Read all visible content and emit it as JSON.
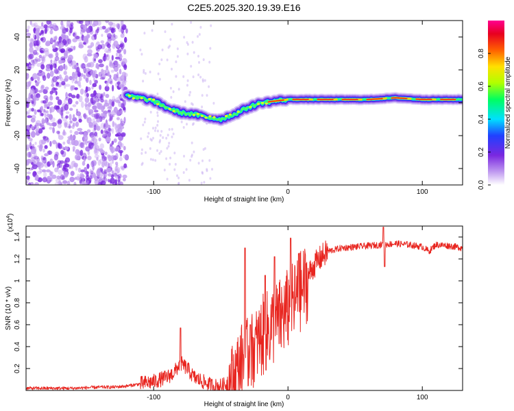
{
  "title": "C2E5.2025.320.19.39.E16",
  "chart_data": [
    {
      "type": "heatmap",
      "xlabel": "Height of straight line (km)",
      "ylabel": "Frequency (Hz)",
      "xlim": [
        -195,
        130
      ],
      "ylim": [
        -50,
        50
      ],
      "xticks": [
        -100,
        0,
        100
      ],
      "yticks": [
        -40,
        -20,
        0,
        20,
        40
      ],
      "colorbar": {
        "label": "Normalized spectral amplitude",
        "range": [
          0,
          1
        ],
        "ticks": [
          "0.0",
          "0.2",
          "0.4",
          "0.6",
          "0.8"
        ],
        "tick_values": [
          0,
          0.2,
          0.4,
          0.6,
          0.8
        ],
        "colors": [
          "#ffffff",
          "#c09af0",
          "#7a28e0",
          "#2040ff",
          "#00e0ff",
          "#00ff60",
          "#b0ff00",
          "#ffe000",
          "#ff6000",
          "#e80020",
          "#ff0090"
        ]
      },
      "ridge": {
        "name": "dominant frequency",
        "x": [
          -120,
          -110,
          -100,
          -90,
          -80,
          -70,
          -60,
          -50,
          -40,
          -30,
          -20,
          -10,
          0,
          20,
          40,
          60,
          80,
          100,
          130
        ],
        "y": [
          4,
          3,
          1,
          -3,
          -6,
          -7,
          -9,
          -10,
          -7,
          -3,
          0,
          1,
          2,
          2,
          2,
          2,
          3,
          2,
          2
        ]
      },
      "noise_region_x": [
        -195,
        -120
      ]
    },
    {
      "type": "line",
      "xlabel": "Height of straight line (km)",
      "ylabel": "SNR (10 * v/v)",
      "scale_note": "(x10",
      "scale_exp": "4",
      "xlim": [
        -195,
        130
      ],
      "ylim": [
        0,
        1.5
      ],
      "xticks": [
        -100,
        0,
        100
      ],
      "yticks": [
        0.2,
        0.4,
        0.6,
        0.8,
        1.0,
        1.2,
        1.4
      ],
      "ytick_labels": [
        "0.2",
        "0.4",
        "0.6",
        "0.8",
        "1",
        "1.2",
        "1.4"
      ],
      "color": "#e8251f",
      "series": [
        {
          "name": "SNR",
          "x": [
            -195,
            -180,
            -160,
            -140,
            -130,
            -120,
            -110,
            -100,
            -90,
            -85,
            -80,
            -75,
            -70,
            -65,
            -60,
            -55,
            -50,
            -45,
            -40,
            -35,
            -30,
            -25,
            -20,
            -15,
            -10,
            -5,
            0,
            5,
            10,
            15,
            20,
            25,
            30,
            40,
            50,
            60,
            70,
            80,
            90,
            100,
            105,
            110,
            120,
            130
          ],
          "y": [
            0.02,
            0.02,
            0.02,
            0.03,
            0.03,
            0.04,
            0.06,
            0.08,
            0.12,
            0.16,
            0.25,
            0.2,
            0.12,
            0.09,
            0.06,
            0.04,
            0.04,
            0.06,
            0.15,
            0.3,
            0.35,
            0.42,
            0.52,
            0.58,
            0.65,
            0.7,
            0.78,
            0.85,
            0.95,
            1.05,
            1.15,
            1.22,
            1.27,
            1.3,
            1.31,
            1.32,
            1.33,
            1.34,
            1.33,
            1.31,
            1.27,
            1.33,
            1.32,
            1.3
          ],
          "peaks": [
            {
              "x": -80,
              "y": 0.57
            },
            {
              "x": -32,
              "y": 1.3
            },
            {
              "x": -28,
              "y": 0.6
            },
            {
              "x": -17,
              "y": 1.05
            },
            {
              "x": -10,
              "y": 1.22
            },
            {
              "x": 2,
              "y": 1.39
            },
            {
              "x": 8,
              "y": 1.25
            },
            {
              "x": 71,
              "y": 1.49
            },
            {
              "x": 72,
              "y": 1.13
            }
          ]
        }
      ]
    }
  ]
}
